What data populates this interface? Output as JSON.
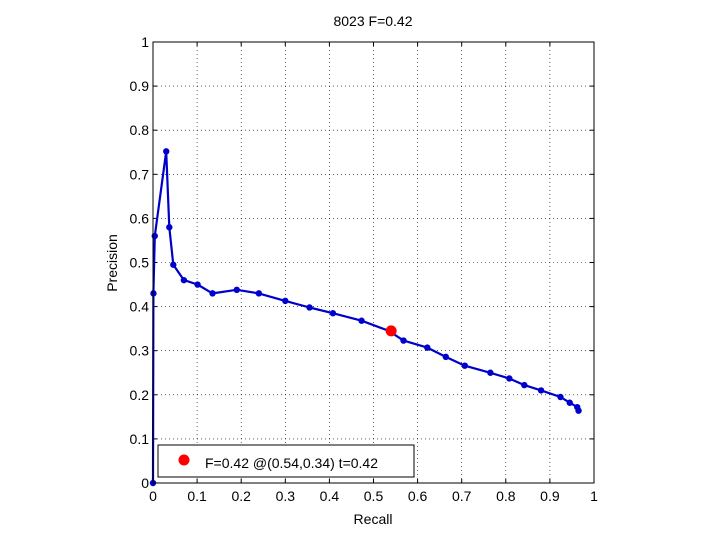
{
  "chart_data": {
    "type": "line",
    "title": "8023 F=0.42",
    "xlabel": "Recall",
    "ylabel": "Precision",
    "xlim": [
      0,
      1
    ],
    "ylim": [
      0,
      1
    ],
    "grid": true,
    "xticks": [
      "0",
      "0.1",
      "0.2",
      "0.3",
      "0.4",
      "0.5",
      "0.6",
      "0.7",
      "0.8",
      "0.9",
      "1"
    ],
    "yticks": [
      "0",
      "0.1",
      "0.2",
      "0.3",
      "0.4",
      "0.5",
      "0.6",
      "0.7",
      "0.8",
      "0.9",
      "1"
    ],
    "series": [
      {
        "color": "#0000cc",
        "x": [
          0.0,
          0.001,
          0.004,
          0.03,
          0.037,
          0.046,
          0.07,
          0.101,
          0.135,
          0.19,
          0.24,
          0.3,
          0.355,
          0.408,
          0.473,
          0.535,
          0.568,
          0.622,
          0.664,
          0.707,
          0.765,
          0.808,
          0.842,
          0.88,
          0.924,
          0.945,
          0.962,
          0.965
        ],
        "y": [
          0.0,
          0.43,
          0.56,
          0.752,
          0.58,
          0.495,
          0.46,
          0.45,
          0.43,
          0.438,
          0.43,
          0.413,
          0.398,
          0.385,
          0.368,
          0.345,
          0.323,
          0.307,
          0.286,
          0.266,
          0.25,
          0.237,
          0.222,
          0.21,
          0.195,
          0.182,
          0.172,
          0.164
        ]
      }
    ],
    "best_point": {
      "x": 0.54,
      "y": 0.345,
      "color": "#ff0000"
    },
    "legend": {
      "text": "F=0.42 @(0.54,0.34) t=0.42",
      "location": "bottom-left"
    }
  }
}
